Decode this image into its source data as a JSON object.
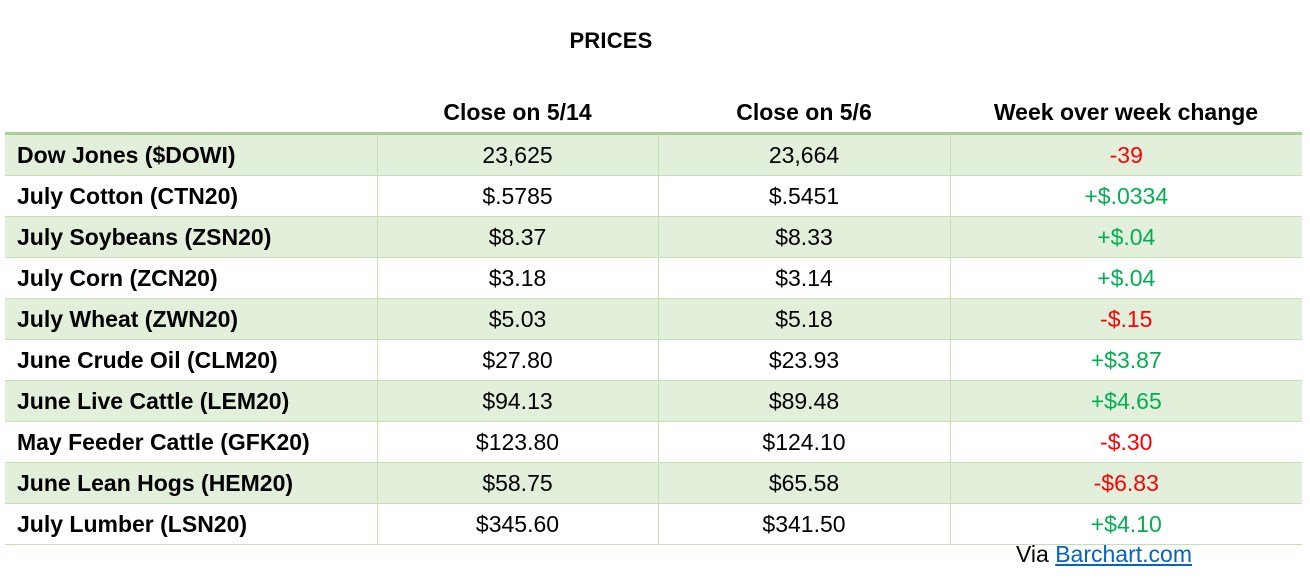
{
  "title": "PRICES",
  "columns": {
    "close_1": "Close on 5/14",
    "close_2": "Close on 5/6",
    "change": "Week over week change"
  },
  "rows": [
    {
      "name": "Dow Jones ($DOWI)",
      "close_1": "23,625",
      "close_2": "23,664",
      "change": "-39",
      "direction": "neg"
    },
    {
      "name": "July Cotton (CTN20)",
      "close_1": "$.5785",
      "close_2": "$.5451",
      "change": "+$.0334",
      "direction": "pos"
    },
    {
      "name": "July Soybeans (ZSN20)",
      "close_1": "$8.37",
      "close_2": "$8.33",
      "change": "+$.04",
      "direction": "pos"
    },
    {
      "name": "July Corn (ZCN20)",
      "close_1": "$3.18",
      "close_2": "$3.14",
      "change": "+$.04",
      "direction": "pos"
    },
    {
      "name": "July Wheat (ZWN20)",
      "close_1": "$5.03",
      "close_2": "$5.18",
      "change": "-$.15",
      "direction": "neg"
    },
    {
      "name": "June Crude Oil (CLM20)",
      "close_1": "$27.80",
      "close_2": "$23.93",
      "change": "+$3.87",
      "direction": "pos"
    },
    {
      "name": "June Live Cattle (LEM20)",
      "close_1": "$94.13",
      "close_2": "$89.48",
      "change": "+$4.65",
      "direction": "pos"
    },
    {
      "name": "May Feeder Cattle (GFK20)",
      "close_1": "$123.80",
      "close_2": "$124.10",
      "change": "-$.30",
      "direction": "neg"
    },
    {
      "name": "June Lean Hogs (HEM20)",
      "close_1": "$58.75",
      "close_2": "$65.58",
      "change": "-$6.83",
      "direction": "neg"
    },
    {
      "name": "July Lumber (LSN20)",
      "close_1": "$345.60",
      "close_2": "$341.50",
      "change": "+$4.10",
      "direction": "pos"
    }
  ],
  "source": {
    "prefix": "Via ",
    "link_text": "Barchart.com"
  },
  "colors": {
    "stripe": "#e2efda",
    "header_rule": "#a9d08e",
    "negative": "#ff0000",
    "positive": "#00b050",
    "link": "#0563c1"
  }
}
